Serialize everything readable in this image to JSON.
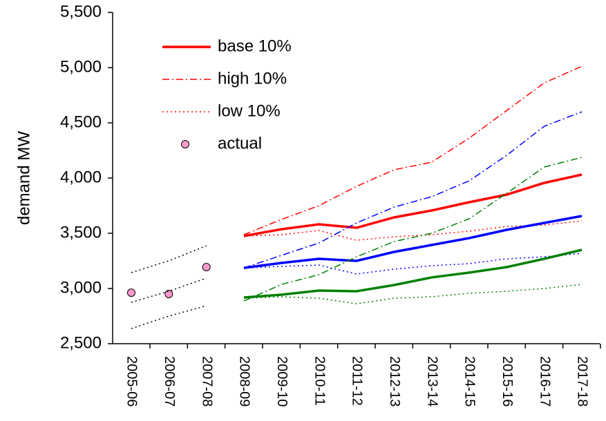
{
  "chart_data": {
    "type": "line",
    "y_label": "demand MW",
    "categories": [
      "2005-06",
      "2006-07",
      "2007-08",
      "2008-09",
      "2009-10",
      "2010-11",
      "2011-12",
      "2012-13",
      "2013-14",
      "2014-15",
      "2015-16",
      "2016-17",
      "2017-18"
    ],
    "ylim": [
      2500,
      5500
    ],
    "yticks": [
      {
        "value": 2500,
        "label": "2,500"
      },
      {
        "value": 3000,
        "label": "3,000"
      },
      {
        "value": 3500,
        "label": "3,500"
      },
      {
        "value": 4000,
        "label": "4,000"
      },
      {
        "value": 4500,
        "label": "4,500"
      },
      {
        "value": 5000,
        "label": "5,000"
      },
      {
        "value": 5500,
        "label": "5,500"
      }
    ],
    "grid": false,
    "legend": "upper left",
    "series": [
      {
        "name": "base 10%",
        "color": "#ff0000",
        "style": "solid",
        "values": [
          null,
          null,
          null,
          3475,
          3537,
          3581,
          3550,
          3644,
          3706,
          3781,
          3850,
          3956,
          4031
        ]
      },
      {
        "name": "high 10%",
        "color": "#ff0000",
        "style": "dashdot",
        "values": [
          null,
          null,
          null,
          3487,
          3625,
          3750,
          3925,
          4075,
          4144,
          4362,
          4612,
          4862,
          5012
        ]
      },
      {
        "name": "low 10%",
        "color": "#ff0000",
        "style": "dotted",
        "values": [
          null,
          null,
          null,
          3475,
          3487,
          3525,
          3437,
          3469,
          3487,
          3519,
          3562,
          3575,
          3612
        ]
      },
      {
        "name": "actual",
        "color": "#ff99cc",
        "style": "marker",
        "values": [
          2962,
          2950,
          3194,
          null,
          null,
          null,
          null,
          null,
          null,
          null,
          null,
          null,
          null
        ]
      },
      {
        "color": "#0000ff",
        "style": "solid",
        "values": [
          null,
          null,
          null,
          3187,
          3231,
          3269,
          3250,
          3331,
          3394,
          3456,
          3531,
          3594,
          3656
        ]
      },
      {
        "color": "#0000ff",
        "style": "dashdot",
        "values": [
          null,
          null,
          null,
          3187,
          3300,
          3412,
          3594,
          3737,
          3831,
          3975,
          4206,
          4469,
          4600
        ]
      },
      {
        "color": "#0000ff",
        "style": "dotted",
        "values": [
          null,
          null,
          null,
          3187,
          3200,
          3212,
          3131,
          3175,
          3206,
          3225,
          3269,
          3287,
          3319
        ]
      },
      {
        "color": "#008000",
        "style": "solid",
        "values": [
          null,
          null,
          null,
          2919,
          2944,
          2981,
          2975,
          3031,
          3100,
          3144,
          3194,
          3269,
          3350
        ]
      },
      {
        "color": "#008000",
        "style": "dashdot",
        "values": [
          null,
          null,
          null,
          2887,
          3037,
          3125,
          3287,
          3425,
          3500,
          3631,
          3862,
          4100,
          4187
        ]
      },
      {
        "color": "#008000",
        "style": "dotted",
        "values": [
          null,
          null,
          null,
          2912,
          2925,
          2912,
          2862,
          2912,
          2925,
          2956,
          2975,
          3000,
          3037
        ]
      },
      {
        "color": "#000000",
        "style": "dotted",
        "values": [
          3144,
          3250,
          3387,
          null,
          null,
          null,
          null,
          null,
          null,
          null,
          null,
          null,
          null
        ]
      },
      {
        "color": "#000000",
        "style": "dotted",
        "values": [
          2875,
          2975,
          3094,
          null,
          null,
          null,
          null,
          null,
          null,
          null,
          null,
          null,
          null
        ]
      },
      {
        "color": "#000000",
        "style": "dotted",
        "values": [
          2637,
          2750,
          2844,
          null,
          null,
          null,
          null,
          null,
          null,
          null,
          null,
          null,
          null
        ]
      }
    ]
  }
}
